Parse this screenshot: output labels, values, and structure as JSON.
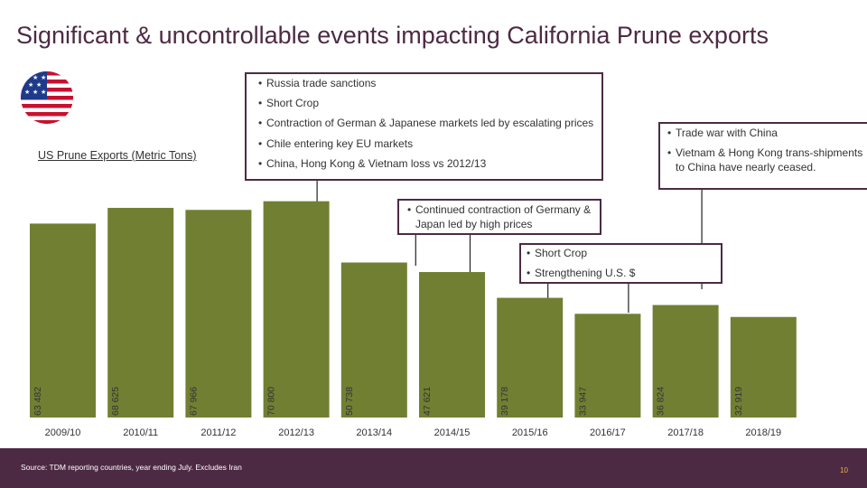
{
  "title": "Significant & uncontrollable events impacting California Prune exports",
  "chart_label": "US Prune Exports (Metric Tons)",
  "flag_icon": "us-flag-icon",
  "colors": {
    "bar": "#717f33",
    "accent": "#4d2a44",
    "page_number": "#e8b24a"
  },
  "callouts": {
    "c1": [
      "Russia trade sanctions",
      "Short Crop",
      "Contraction of German & Japanese markets led by escalating prices",
      "Chile entering key EU markets",
      "China, Hong Kong & Vietnam loss vs 2012/13"
    ],
    "c2": [
      "Trade war with China",
      "Vietnam & Hong Kong trans-shipments to China have nearly ceased."
    ],
    "c3": [
      "Continued contraction of Germany & Japan led by high prices"
    ],
    "c4": [
      "Short Crop",
      "Strengthening U.S. $"
    ]
  },
  "footer": {
    "source": "Source: TDM reporting countries, year ending July. Excludes Iran",
    "page_number": "10"
  },
  "chart_data": {
    "type": "bar",
    "title": "US Prune Exports (Metric Tons)",
    "xlabel": "",
    "ylabel": "",
    "categories": [
      "2009/10",
      "2010/11",
      "2011/12",
      "2012/13",
      "2013/14",
      "2014/15",
      "2015/16",
      "2016/17",
      "2017/18",
      "2018/19"
    ],
    "values": [
      63482,
      68625,
      67966,
      70800,
      50738,
      47621,
      39178,
      33947,
      36824,
      32919
    ],
    "value_labels": [
      "63 482",
      "68 625",
      "67 966",
      "70 800",
      "50 738",
      "47 621",
      "39 178",
      "33 947",
      "36 824",
      "32 919"
    ],
    "ylim": [
      0,
      71000
    ],
    "grid": false
  }
}
